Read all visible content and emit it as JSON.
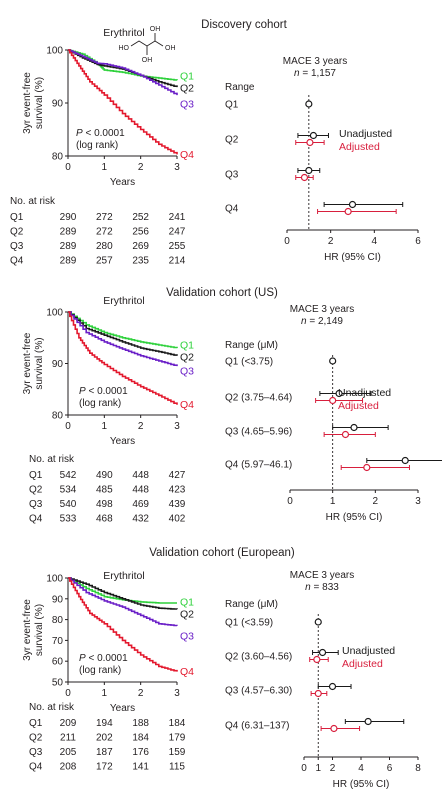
{
  "palette": {
    "q1": "#2fd13c",
    "q2": "#1a1a1a",
    "q3": "#6a1fc7",
    "q4": "#e3182d",
    "unadjusted": "#1a1a1a",
    "adjusted": "#d81f3d",
    "axis": "#231f20"
  },
  "chart_data": [
    {
      "type": "line",
      "panel": "discovery-km",
      "title": "Discovery cohort",
      "subtitle": "Erythritol",
      "xlabel": "Years",
      "ylabel": "3yr event-free survival (%)",
      "xlim": [
        0,
        3
      ],
      "ylim": [
        80,
        100
      ],
      "xticks": [
        0,
        1,
        2,
        3
      ],
      "yticks": [
        80,
        90,
        100
      ],
      "annotation": [
        "P < 0.0001",
        "(log rank)"
      ],
      "at_risk_title": "No. at risk",
      "at_risk_times": [
        0,
        1,
        2,
        3
      ],
      "series": [
        {
          "name": "Q1",
          "color_key": "q1",
          "x": [
            0,
            0.4,
            0.8,
            1.0,
            1.5,
            2.0,
            2.5,
            3.0
          ],
          "y": [
            100,
            99.2,
            97.5,
            96.2,
            95.8,
            95.1,
            94.7,
            94.3
          ]
        },
        {
          "name": "Q2",
          "color_key": "q2",
          "x": [
            0,
            0.4,
            0.8,
            1.0,
            1.5,
            2.0,
            2.5,
            3.0
          ],
          "y": [
            100,
            98.5,
            97.3,
            97.0,
            96.4,
            95.2,
            94.0,
            93.0
          ]
        },
        {
          "name": "Q3",
          "color_key": "q3",
          "x": [
            0,
            0.4,
            0.8,
            1.0,
            1.5,
            2.0,
            2.5,
            3.0
          ],
          "y": [
            100,
            98.8,
            97.5,
            97.4,
            96.6,
            95.2,
            93.4,
            91.5
          ]
        },
        {
          "name": "Q4",
          "color_key": "q4",
          "x": [
            0,
            0.3,
            0.6,
            1.0,
            1.5,
            2.0,
            2.5,
            3.0
          ],
          "y": [
            100,
            97.0,
            94.0,
            91.5,
            88.0,
            85.0,
            82.2,
            80.3
          ]
        }
      ],
      "at_risk": [
        {
          "label": "Q1",
          "counts": [
            290,
            272,
            252,
            241
          ]
        },
        {
          "label": "Q2",
          "counts": [
            289,
            272,
            256,
            247
          ]
        },
        {
          "label": "Q3",
          "counts": [
            289,
            280,
            269,
            255
          ]
        },
        {
          "label": "Q4",
          "counts": [
            289,
            257,
            235,
            214
          ]
        }
      ],
      "structure": {
        "label": "Erythritol",
        "oh": [
          "HO",
          "OH",
          "OH",
          "OH"
        ]
      }
    },
    {
      "type": "scatter",
      "panel": "discovery-forest",
      "title": "MACE 3 years",
      "n_label": "n = 1,157",
      "xlabel": "HR (95% CI)",
      "xlim": [
        0,
        6
      ],
      "xticks": [
        0,
        2,
        4,
        6
      ],
      "xtick_labels": [
        "0",
        "2",
        "4",
        "6"
      ],
      "reference": 1,
      "category_header": "Range",
      "legend": [
        "Unadjusted",
        "Adjusted"
      ],
      "categories": [
        "Q1",
        "Q2",
        "Q3",
        "Q4"
      ],
      "series": [
        {
          "name": "Unadjusted",
          "color_key": "unadjusted",
          "hr": [
            1.0,
            1.21,
            1.0,
            3.0
          ],
          "lo": [
            null,
            0.5,
            0.5,
            1.7
          ],
          "hi": [
            null,
            1.9,
            1.5,
            5.3
          ]
        },
        {
          "name": "Adjusted",
          "color_key": "adjusted",
          "hr": [
            null,
            1.05,
            0.8,
            2.8
          ],
          "lo": [
            null,
            0.4,
            0.4,
            1.4
          ],
          "hi": [
            null,
            1.7,
            1.2,
            5.0
          ]
        }
      ]
    },
    {
      "type": "line",
      "panel": "us-km",
      "title": "Validation cohort (US)",
      "subtitle": "Erythritol",
      "xlabel": "Years",
      "ylabel": "3yr event-free survival (%)",
      "xlim": [
        0,
        3
      ],
      "ylim": [
        80,
        100
      ],
      "xticks": [
        0,
        1,
        2,
        3
      ],
      "yticks": [
        80,
        90,
        100
      ],
      "annotation": [
        "P < 0.0001",
        "(log rank)"
      ],
      "at_risk_title": "No. at risk",
      "at_risk_times": [
        0,
        1,
        2,
        3
      ],
      "series": [
        {
          "name": "Q1",
          "color_key": "q1",
          "x": [
            0,
            0.5,
            1.0,
            1.5,
            2.0,
            2.5,
            3.0
          ],
          "y": [
            100,
            97.5,
            96.0,
            95.0,
            94.2,
            93.6,
            93.0
          ]
        },
        {
          "name": "Q2",
          "color_key": "q2",
          "x": [
            0,
            0.5,
            1.0,
            1.5,
            2.0,
            2.5,
            3.0
          ],
          "y": [
            100,
            96.8,
            95.5,
            94.2,
            93.0,
            92.3,
            91.5
          ]
        },
        {
          "name": "Q3",
          "color_key": "q3",
          "x": [
            0,
            0.5,
            1.0,
            1.5,
            2.0,
            2.5,
            3.0
          ],
          "y": [
            100,
            96.0,
            94.2,
            92.8,
            91.5,
            90.5,
            89.5
          ]
        },
        {
          "name": "Q4",
          "color_key": "q4",
          "x": [
            0,
            0.3,
            0.6,
            1.0,
            1.5,
            2.0,
            2.5,
            3.0
          ],
          "y": [
            100,
            95.0,
            92.0,
            89.8,
            87.5,
            85.5,
            83.8,
            82.0
          ]
        }
      ],
      "at_risk": [
        {
          "label": "Q1",
          "counts": [
            542,
            490,
            448,
            427
          ]
        },
        {
          "label": "Q2",
          "counts": [
            534,
            485,
            448,
            423
          ]
        },
        {
          "label": "Q3",
          "counts": [
            540,
            498,
            469,
            439
          ]
        },
        {
          "label": "Q4",
          "counts": [
            533,
            468,
            432,
            402
          ]
        }
      ]
    },
    {
      "type": "scatter",
      "panel": "us-forest",
      "title": "MACE 3 years",
      "n_label": "n = 2,149",
      "xlabel": "HR (95% CI)",
      "xlim": [
        0,
        3
      ],
      "xticks": [
        0,
        1,
        2,
        3
      ],
      "xtick_labels": [
        "0",
        "1",
        "2",
        "3"
      ],
      "reference": 1,
      "category_header": "Range (μM)",
      "legend": [
        "Unadjusted",
        "Adjusted"
      ],
      "categories": [
        "Q1 (<3.75)",
        "Q2 (3.75–4.64)",
        "Q3 (4.65–5.96)",
        "Q4 (5.97–46.1)"
      ],
      "series": [
        {
          "name": "Unadjusted",
          "color_key": "unadjusted",
          "hr": [
            1.0,
            1.15,
            1.5,
            2.7
          ],
          "lo": [
            null,
            0.7,
            1.0,
            1.8
          ],
          "hi": [
            null,
            1.9,
            2.3,
            3.9
          ]
        },
        {
          "name": "Adjusted",
          "color_key": "adjusted",
          "hr": [
            null,
            1.0,
            1.3,
            1.8
          ],
          "lo": [
            null,
            0.6,
            0.8,
            1.2
          ],
          "hi": [
            null,
            1.7,
            2.0,
            2.8
          ]
        }
      ]
    },
    {
      "type": "line",
      "panel": "european-km",
      "title": "Validation cohort (European)",
      "subtitle": "Erythritol",
      "xlabel": "Years",
      "ylabel": "3yr event-free survival (%)",
      "xlim": [
        0,
        3
      ],
      "ylim": [
        50,
        100
      ],
      "xticks": [
        0,
        1,
        2,
        3
      ],
      "yticks": [
        50,
        60,
        70,
        80,
        90,
        100
      ],
      "annotation": [
        "P < 0.0001",
        "(log rank)"
      ],
      "at_risk_title": "No. at risk",
      "at_risk_times": [
        0,
        1,
        2,
        3
      ],
      "series": [
        {
          "name": "Q1",
          "color_key": "q1",
          "x": [
            0,
            0.5,
            1.0,
            1.5,
            2.0,
            2.5,
            3.0
          ],
          "y": [
            100,
            95.0,
            91.0,
            89.5,
            88.5,
            88.0,
            88.0
          ]
        },
        {
          "name": "Q2",
          "color_key": "q2",
          "x": [
            0,
            0.5,
            1.0,
            1.5,
            2.0,
            2.5,
            3.0
          ],
          "y": [
            100,
            97.0,
            93.0,
            90.0,
            87.0,
            85.5,
            85.0
          ]
        },
        {
          "name": "Q3",
          "color_key": "q3",
          "x": [
            0,
            0.5,
            1.0,
            1.5,
            2.0,
            2.5,
            3.0
          ],
          "y": [
            100,
            93.0,
            89.0,
            86.0,
            82.0,
            78.0,
            77.0
          ]
        },
        {
          "name": "Q4",
          "color_key": "q4",
          "x": [
            0,
            0.3,
            0.6,
            1.0,
            1.5,
            2.0,
            2.5,
            3.0
          ],
          "y": [
            100,
            91.0,
            83.0,
            78.0,
            70.0,
            63.0,
            57.5,
            55.0
          ]
        }
      ],
      "at_risk": [
        {
          "label": "Q1",
          "counts": [
            209,
            194,
            188,
            184
          ]
        },
        {
          "label": "Q2",
          "counts": [
            211,
            202,
            184,
            179
          ]
        },
        {
          "label": "Q3",
          "counts": [
            205,
            187,
            176,
            159
          ]
        },
        {
          "label": "Q4",
          "counts": [
            208,
            172,
            141,
            115
          ]
        }
      ]
    },
    {
      "type": "scatter",
      "panel": "european-forest",
      "title": "MACE 3 years",
      "n_label": "n = 833",
      "xlabel": "HR (95% CI)",
      "xlim": [
        0,
        8
      ],
      "xticks": [
        0,
        1,
        2,
        4,
        6,
        8
      ],
      "xtick_labels": [
        "0",
        "1",
        "2",
        "4",
        "6",
        "8"
      ],
      "reference": 1,
      "category_header": "Range (μM)",
      "legend": [
        "Unadjusted",
        "Adjusted"
      ],
      "categories": [
        "Q1 (<3.59)",
        "Q2 (3.60–4.56)",
        "Q3 (4.57–6.30)",
        "Q4 (6.31–137)"
      ],
      "series": [
        {
          "name": "Unadjusted",
          "color_key": "unadjusted",
          "hr": [
            1.0,
            1.3,
            2.0,
            4.5
          ],
          "lo": [
            null,
            0.6,
            1.0,
            2.9
          ],
          "hi": [
            null,
            2.4,
            3.3,
            7.0
          ]
        },
        {
          "name": "Adjusted",
          "color_key": "adjusted",
          "hr": [
            null,
            0.9,
            1.0,
            2.1
          ],
          "lo": [
            null,
            0.4,
            0.5,
            1.2
          ],
          "hi": [
            null,
            1.7,
            1.6,
            3.9
          ]
        }
      ]
    }
  ]
}
